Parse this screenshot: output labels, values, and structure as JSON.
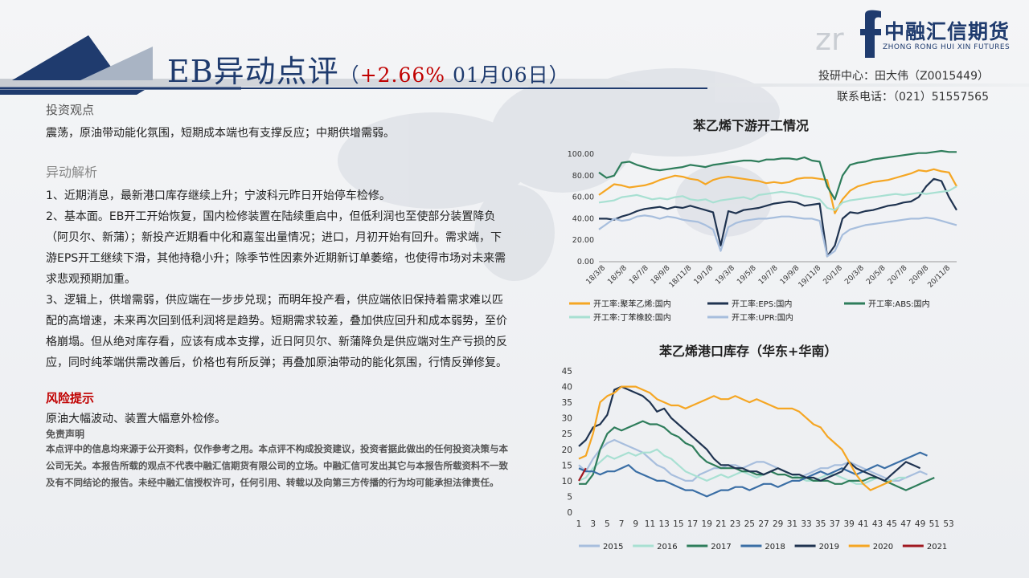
{
  "header": {
    "title_main": "EB异动点评",
    "title_paren_open": "（",
    "title_pct": "+2.66%",
    "title_date": " 01月06日",
    "title_paren_close": "）"
  },
  "logo": {
    "brand_cn": "中融汇信期货",
    "brand_en": "ZHONG RONG HUI XIN FUTURES"
  },
  "contact": {
    "line1": "投研中心：田大伟（Z0015449）",
    "line2": "联系电话：（021）51557565"
  },
  "views": {
    "heading": "投资观点",
    "text": "震荡，原油带动能化氛围，短期成本端也有支撑反应；中期供增需弱。"
  },
  "analysis": {
    "heading": "异动解析",
    "p1": "1、近期消息，最新港口库存继续上升；宁波科元昨日开始停车检修。",
    "p2": "2、基本面。EB开工开始恢复，国内检修装置在陆续重启中，但低利润也至使部分装置降负（阿贝尔、新蒲）；新投产近期看中化和嘉玺出量情况；进口，月初开始有回升。需求端，下游EPS开工继续下滑，其他持稳小升；除季节性因素外近期新订单萎缩，也使得市场对未来需求悲观预期加重。",
    "p3": "3、逻辑上，供增需弱，供应端在一步步兑现；而明年投产看，供应端依旧保持着需求难以匹配的高增速，未来再次回到低利润将是趋势。短期需求较差，叠加供应回升和成本弱势，至价格崩塌。但从绝对库存看，应该有成本支撑，近日阿贝尔、新蒲降负是供应端对生产亏损的反应，同时纯苯端供需改善后，价格也有所反弹；再叠加原油带动的能化氛围，行情反弹修复。"
  },
  "risk": {
    "heading": "风险提示",
    "text": "原油大幅波动、装置大幅意外检修。"
  },
  "disclaimer": {
    "heading": "免责声明",
    "text": "本点评中的信息均来源于公开资料，仅作参考之用。本点评不构成投资建议，投资者据此做出的任何投资决策与本公司无关。本报告所载的观点不代表中融汇信期货有限公司的立场。中融汇信可发出其它与本报告所载资料不一致及有不同结论的报告。未经中融汇信授权许可，任何引用、转载以及向第三方传播的行为均可能承担法律责任。"
  },
  "chart_data": [
    {
      "type": "line",
      "title": "苯乙烯下游开工情况",
      "x_tick_labels": [
        "18/3/8",
        "18/5/8",
        "18/7/8",
        "18/9/8",
        "18/11/8",
        "19/1/8",
        "19/3/8",
        "19/5/8",
        "19/7/8",
        "19/9/8",
        "19/11/8",
        "20/1/8",
        "20/3/8",
        "20/5/8",
        "20/7/8",
        "20/9/8",
        "20/11/8"
      ],
      "y_tick_labels": [
        "0.00",
        "20.00",
        "40.00",
        "60.00",
        "80.00",
        "100.00"
      ],
      "ylim": [
        0,
        100
      ],
      "legend_position": "bottom",
      "grid": false,
      "series": [
        {
          "name": "开工率:聚苯乙烯:国内",
          "color": "#f5a623",
          "values": [
            62,
            67,
            72,
            71,
            69,
            70,
            71,
            73,
            76,
            78,
            80,
            79,
            77,
            76,
            72,
            76,
            78,
            79,
            78,
            77,
            76,
            75,
            73,
            74,
            73,
            74,
            77,
            78,
            78,
            77,
            76,
            45,
            58,
            66,
            70,
            72,
            74,
            75,
            76,
            78,
            80,
            82,
            85,
            84,
            86,
            84,
            83,
            70
          ]
        },
        {
          "name": "开工率:EPS:国内",
          "color": "#1f3350",
          "values": [
            40,
            40,
            39,
            42,
            44,
            47,
            49,
            50,
            51,
            49,
            51,
            50,
            52,
            50,
            48,
            46,
            15,
            47,
            45,
            48,
            49,
            50,
            52,
            54,
            55,
            56,
            55,
            52,
            53,
            54,
            5,
            15,
            40,
            46,
            45,
            47,
            48,
            50,
            52,
            53,
            55,
            56,
            60,
            70,
            77,
            75,
            60,
            48
          ]
        },
        {
          "name": "开工率:ABS:国内",
          "color": "#2e7d5b",
          "values": [
            83,
            78,
            80,
            92,
            93,
            90,
            88,
            86,
            85,
            86,
            87,
            88,
            90,
            89,
            88,
            90,
            91,
            92,
            93,
            94,
            94,
            93,
            95,
            95,
            96,
            96,
            95,
            97,
            94,
            93,
            70,
            58,
            80,
            90,
            92,
            93,
            95,
            96,
            97,
            98,
            99,
            100,
            101,
            101,
            102,
            103,
            102,
            102
          ]
        },
        {
          "name": "开工率:丁苯橡胶:国内",
          "color": "#a8e0d2",
          "values": [
            55,
            56,
            57,
            60,
            61,
            62,
            60,
            58,
            59,
            58,
            60,
            61,
            58,
            57,
            58,
            55,
            57,
            58,
            59,
            60,
            58,
            62,
            63,
            64,
            65,
            64,
            63,
            61,
            60,
            58,
            50,
            48,
            55,
            57,
            58,
            59,
            60,
            61,
            62,
            63,
            62,
            63,
            64,
            63,
            64,
            65,
            66,
            70
          ]
        },
        {
          "name": "开工率:UPR:国内",
          "color": "#a7bedd",
          "values": [
            30,
            35,
            40,
            38,
            39,
            42,
            43,
            42,
            40,
            42,
            41,
            39,
            38,
            37,
            34,
            30,
            10,
            32,
            36,
            38,
            39,
            40,
            40,
            41,
            42,
            42,
            41,
            40,
            40,
            38,
            5,
            10,
            25,
            30,
            32,
            34,
            35,
            36,
            37,
            38,
            39,
            40,
            40,
            41,
            40,
            38,
            36,
            34
          ]
        }
      ]
    },
    {
      "type": "line",
      "title": "苯乙烯港口库存（华东+华南）",
      "x_tick_labels": [
        "1",
        "3",
        "5",
        "7",
        "9",
        "11",
        "13",
        "15",
        "17",
        "19",
        "21",
        "23",
        "25",
        "27",
        "29",
        "31",
        "33",
        "35",
        "37",
        "39",
        "41",
        "43",
        "45",
        "47",
        "49",
        "51",
        "53"
      ],
      "y_tick_labels": [
        "0",
        "5",
        "10",
        "15",
        "20",
        "25",
        "30",
        "35",
        "40",
        "45"
      ],
      "ylim": [
        0,
        45
      ],
      "legend_position": "bottom",
      "grid": false,
      "series": [
        {
          "name": "2015",
          "color": "#a7bedd",
          "values": [
            15,
            13,
            17,
            20,
            22,
            23,
            22,
            21,
            20,
            19,
            17,
            15,
            14,
            12,
            11,
            10,
            10,
            12,
            13,
            14,
            14,
            15,
            15,
            14,
            15,
            16,
            16,
            15,
            14,
            13,
            12,
            11,
            12,
            13,
            14,
            14,
            15,
            15,
            16,
            15,
            14,
            13,
            12,
            11,
            10,
            10,
            11,
            12,
            13,
            12
          ]
        },
        {
          "name": "2016",
          "color": "#a8e0d2",
          "values": [
            10,
            11,
            14,
            16,
            18,
            17,
            18,
            19,
            18,
            19,
            19,
            20,
            18,
            17,
            15,
            13,
            12,
            11,
            10,
            11,
            12,
            11,
            12,
            13,
            12,
            11,
            12,
            13,
            14,
            13,
            12,
            11,
            10,
            10,
            11,
            12,
            12,
            11,
            10,
            9,
            9,
            10,
            11,
            10,
            10,
            11,
            11
          ]
        },
        {
          "name": "2017",
          "color": "#2e7d5b",
          "values": [
            9,
            9,
            12,
            20,
            25,
            27,
            26,
            27,
            28,
            29,
            28,
            28,
            27,
            25,
            24,
            22,
            21,
            18,
            16,
            15,
            14,
            14,
            14,
            13,
            13,
            12,
            12,
            13,
            12,
            12,
            11,
            11,
            11,
            10,
            10,
            10,
            9,
            9,
            10,
            10,
            10,
            11,
            11,
            10,
            9,
            8,
            7,
            8,
            9,
            10,
            11
          ]
        },
        {
          "name": "2018",
          "color": "#3a6ea5",
          "values": [
            14,
            13,
            13,
            12,
            13,
            13,
            14,
            15,
            13,
            12,
            11,
            10,
            10,
            9,
            8,
            7,
            7,
            6,
            5,
            6,
            7,
            7,
            8,
            8,
            7,
            8,
            9,
            9,
            8,
            9,
            10,
            10,
            11,
            12,
            13,
            12,
            13,
            14,
            13,
            12,
            13,
            14,
            15,
            14,
            15,
            16,
            17,
            18,
            19,
            18
          ]
        },
        {
          "name": "2019",
          "color": "#1f3350",
          "values": [
            21,
            23,
            27,
            28,
            31,
            39,
            40,
            39,
            38,
            37,
            35,
            32,
            33,
            30,
            28,
            26,
            24,
            22,
            20,
            17,
            15,
            15,
            14,
            14,
            13,
            13,
            12,
            13,
            14,
            13,
            12,
            12,
            11,
            11,
            10,
            11,
            12,
            13,
            16,
            14,
            13,
            12,
            11,
            10,
            12,
            14,
            16,
            15,
            14
          ]
        },
        {
          "name": "2020",
          "color": "#f5a623",
          "values": [
            17,
            18,
            25,
            35,
            37,
            38,
            40,
            40,
            40,
            39,
            38,
            36,
            35,
            34,
            34,
            33,
            34,
            35,
            36,
            37,
            36,
            36,
            37,
            36,
            35,
            36,
            35,
            34,
            33,
            33,
            33,
            32,
            30,
            28,
            27,
            24,
            22,
            20,
            16,
            12,
            9,
            7,
            8,
            9,
            10
          ]
        },
        {
          "name": "2021",
          "color": "#a01820",
          "values": [
            10,
            14
          ]
        }
      ]
    }
  ]
}
